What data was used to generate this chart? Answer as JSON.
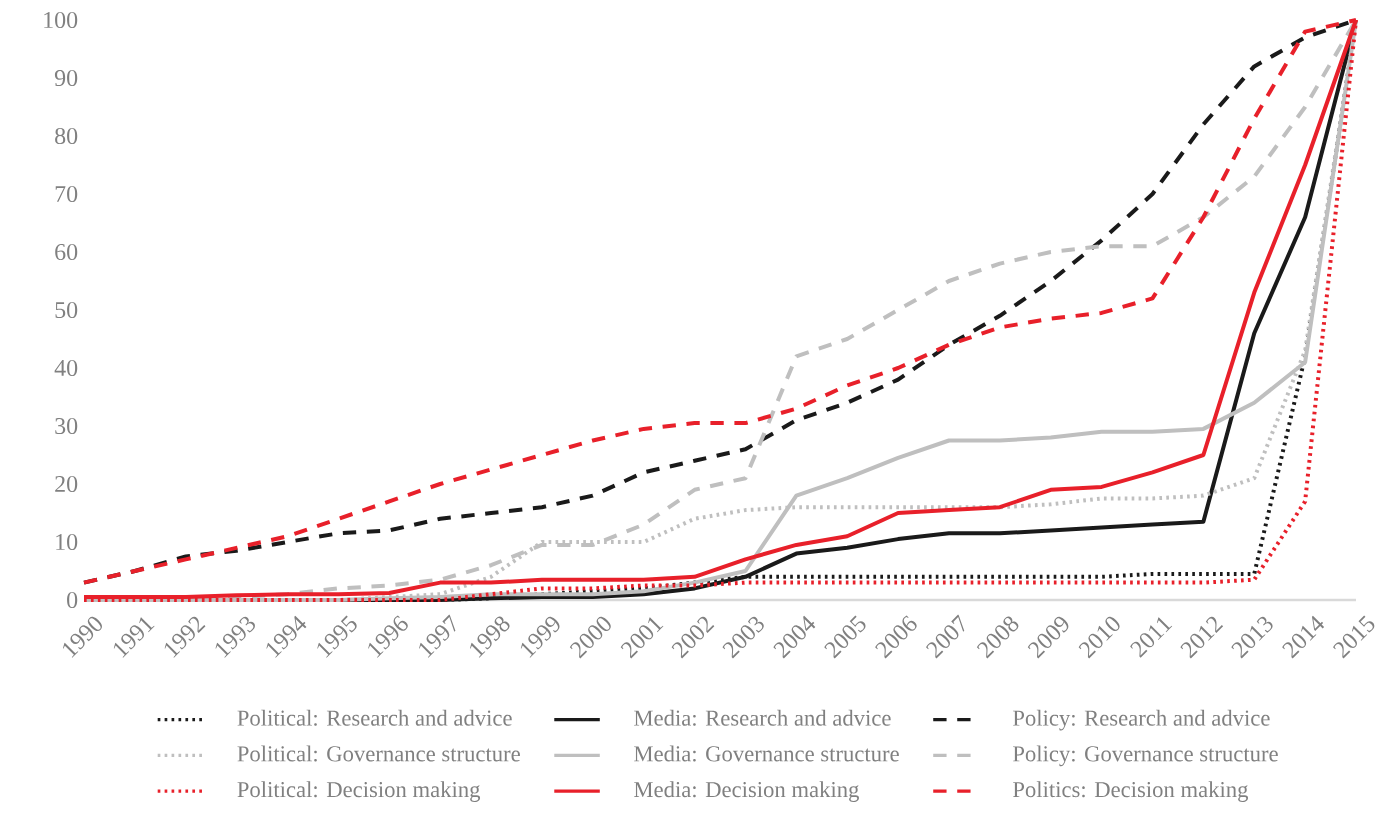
{
  "chart_data": {
    "type": "line",
    "x": [
      1990,
      1991,
      1992,
      1993,
      1994,
      1995,
      1996,
      1997,
      1998,
      1999,
      2000,
      2001,
      2002,
      2003,
      2004,
      2005,
      2006,
      2007,
      2008,
      2009,
      2010,
      2011,
      2012,
      2013,
      2014,
      2015
    ],
    "xlim": [
      1990,
      2015
    ],
    "xticks": [
      1990,
      1991,
      1992,
      1993,
      1994,
      1995,
      1996,
      1997,
      1998,
      1999,
      2000,
      2001,
      2002,
      2003,
      2004,
      2005,
      2006,
      2007,
      2008,
      2009,
      2010,
      2011,
      2012,
      2013,
      2014,
      2015
    ],
    "ylim": [
      0,
      100
    ],
    "yticks": [
      0,
      10,
      20,
      30,
      40,
      50,
      60,
      70,
      80,
      90,
      100
    ],
    "grid": false,
    "legend": "bottom",
    "marker": "none",
    "series": [
      {
        "name": "Political: Research and advice",
        "color": "#1a1a1a",
        "line_style": "dotted",
        "values": [
          0,
          0,
          0,
          0,
          0,
          0,
          0,
          0,
          0.3,
          1,
          1.5,
          2,
          3,
          4,
          4,
          4,
          4,
          4,
          4,
          4,
          4,
          4.5,
          4.5,
          4.5,
          42,
          100
        ]
      },
      {
        "name": "Media: Research and advice",
        "color": "#1a1a1a",
        "line_style": "solid",
        "values": [
          null,
          null,
          null,
          null,
          0,
          0,
          0,
          0,
          0.3,
          0.5,
          0.5,
          1,
          2,
          4,
          8,
          9,
          10.5,
          11.5,
          11.5,
          12,
          12.5,
          13,
          13.5,
          46,
          66,
          100
        ]
      },
      {
        "name": "Policy: Research and advice",
        "color": "#1a1a1a",
        "line_style": "dashed",
        "values": [
          3,
          5,
          7.5,
          8.5,
          10,
          11.5,
          12,
          14,
          15,
          16,
          18,
          22,
          24,
          26,
          31,
          34,
          38,
          44,
          49,
          55,
          62,
          70,
          82,
          92,
          97,
          100
        ]
      },
      {
        "name": "Political: Governance structure",
        "color": "#bfbfbf",
        "line_style": "dotted",
        "values": [
          0,
          0,
          0,
          0,
          0,
          0,
          0.5,
          1,
          4,
          10,
          10,
          10,
          14,
          15.5,
          16,
          16,
          16,
          16,
          16,
          16.5,
          17.5,
          17.5,
          18,
          21,
          43,
          100
        ]
      },
      {
        "name": "Media: Governance structure",
        "color": "#bfbfbf",
        "line_style": "solid",
        "values": [
          0,
          0,
          0,
          0,
          0,
          0,
          0.3,
          0.5,
          1,
          1,
          1,
          1.5,
          3,
          5,
          18,
          21,
          24.5,
          27.5,
          27.5,
          28,
          29,
          29,
          29.5,
          34,
          41,
          100
        ]
      },
      {
        "name": "Policy: Governance structure",
        "color": "#bfbfbf",
        "line_style": "dashed",
        "values": [
          0,
          0,
          0,
          0.5,
          1,
          2,
          2.5,
          3.5,
          6,
          9.5,
          9.5,
          13,
          19,
          21,
          42,
          45,
          50,
          55,
          58,
          60,
          61,
          61,
          66,
          73,
          85,
          100
        ]
      },
      {
        "name": "Political: Decision making",
        "color": "#e8202a",
        "line_style": "dotted",
        "values": [
          0,
          0,
          0,
          0,
          0,
          0,
          0,
          0,
          1,
          2,
          2,
          2.5,
          2.5,
          3,
          3,
          3,
          3,
          3,
          3,
          3,
          3,
          3,
          3,
          3.5,
          17,
          100
        ]
      },
      {
        "name": "Media: Decision making",
        "color": "#e8202a",
        "line_style": "solid",
        "values": [
          0.5,
          0.5,
          0.5,
          0.8,
          1,
          1,
          1.2,
          3,
          3,
          3.5,
          3.5,
          3.5,
          4,
          7,
          9.5,
          11,
          15,
          15.5,
          16,
          19,
          19.5,
          22,
          25,
          53,
          75,
          100
        ]
      },
      {
        "name": "Politics: Decision making",
        "color": "#e8202a",
        "line_style": "dashed",
        "values": [
          3,
          5,
          7,
          9,
          11,
          14,
          17,
          20,
          22.5,
          25,
          27.5,
          29.5,
          30.5,
          30.5,
          33,
          37,
          40,
          44,
          47,
          48.5,
          49.5,
          52,
          66,
          83,
          98,
          100
        ]
      }
    ]
  }
}
